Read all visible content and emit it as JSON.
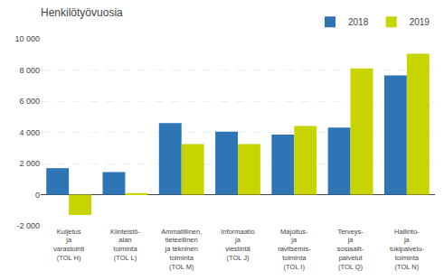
{
  "chart_data": {
    "type": "bar",
    "title": "Henkilötyövuosia",
    "categories": [
      "Kuljetus\nja\nvarastointi\n(TOL H)",
      "Kiinteistö-\nalan\ntoiminta\n(TOL L)",
      "Ammatillinen,\ntieteellinen\nja tekninen\ntoiminta\n(TOL M)",
      "Informaatio\nja\nviestintä\n(TOL J)",
      "Majoitus-\nja\nravitsemis-\ntoiminta\n(TOL I)",
      "Terveys-\nja\nsosiaalit-\npalvelut\n(TOL Q)",
      "Hallinto-\nja\ntukipalvelu-\ntoiminta\n(TOL N)"
    ],
    "series": [
      {
        "name": "2018",
        "color": "#2E75B6",
        "values": [
          1700,
          1450,
          4600,
          4050,
          3850,
          4300,
          7650
        ]
      },
      {
        "name": "2019",
        "color": "#C8D400",
        "values": [
          -1300,
          100,
          3250,
          3250,
          4400,
          8100,
          9050
        ]
      }
    ],
    "ylim": [
      -2000,
      10000
    ],
    "yticks": [
      {
        "value": -2000,
        "label": "-2 000"
      },
      0,
      {
        "value": 2000,
        "label": "2 000"
      },
      {
        "value": 4000,
        "label": "4 000"
      },
      {
        "value": 6000,
        "label": "6 000"
      },
      {
        "value": 8000,
        "label": "8 000"
      },
      {
        "value": 10000,
        "label": "10 000"
      }
    ],
    "grid": true,
    "legend": "upper right"
  }
}
